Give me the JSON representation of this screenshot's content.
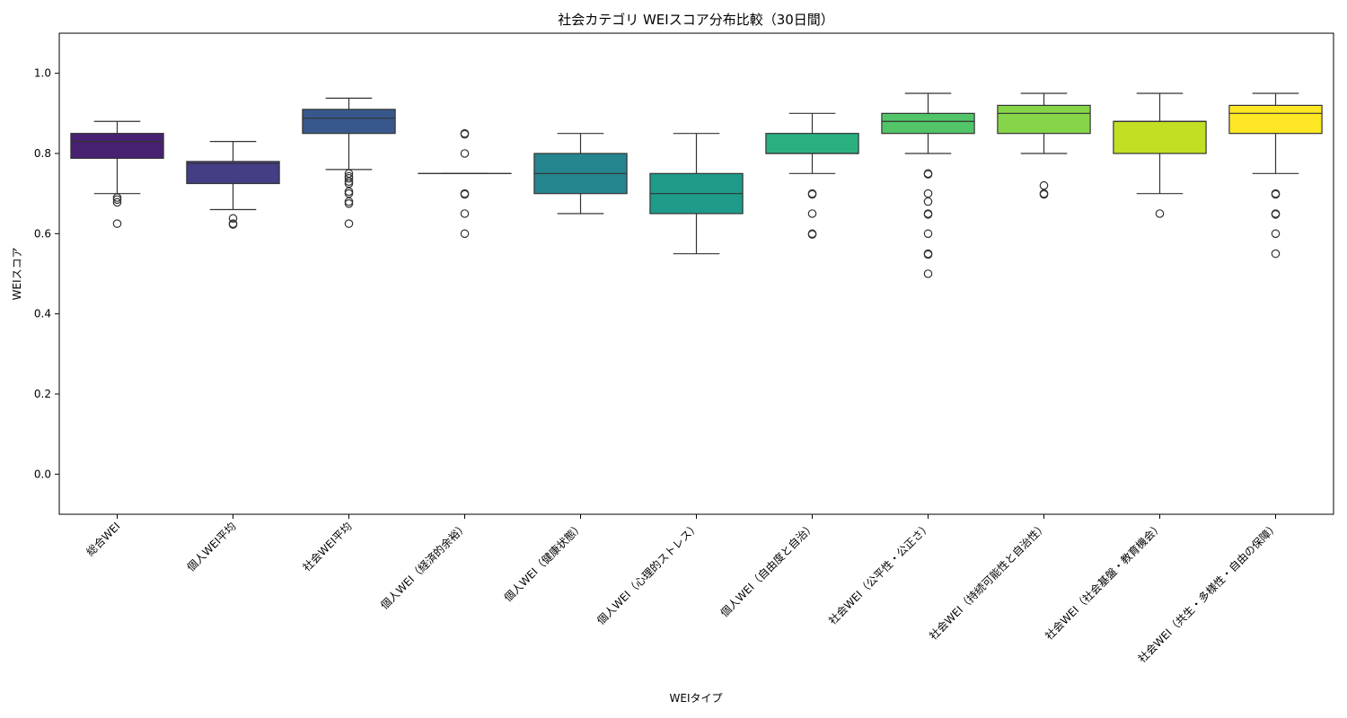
{
  "chart_data": {
    "type": "box",
    "title": "社会カテゴリ WEIスコア分布比較（30日間）",
    "xlabel": "WEIタイプ",
    "ylabel": "WEIスコア",
    "ylim": [
      -0.1,
      1.1
    ],
    "yticks": [
      0.0,
      0.2,
      0.4,
      0.6,
      0.8,
      1.0
    ],
    "ytick_labels": [
      "0.0",
      "0.2",
      "0.4",
      "0.6",
      "0.8",
      "1.0"
    ],
    "grid": false,
    "legend": "none",
    "categories": [
      "総合WEI",
      "個人WEI平均",
      "社会WEI平均",
      "個人WEI（経済的余裕）",
      "個人WEI（健康状態）",
      "個人WEI（心理的ストレス）",
      "個人WEI（自由度と自治）",
      "社会WEI（公平性・公正さ）",
      "社会WEI（持続可能性と自治性）",
      "社会WEI（社会基盤・教育機会）",
      "社会WEI（共生・多様性・自由の保障）"
    ],
    "boxes": [
      {
        "whisker_low": 0.7,
        "q1": 0.788,
        "median": 0.83,
        "q3": 0.85,
        "whisker_high": 0.88,
        "outliers": [
          0.69,
          0.685,
          0.678,
          0.625
        ],
        "color": "#482173"
      },
      {
        "whisker_low": 0.66,
        "q1": 0.725,
        "median": 0.775,
        "q3": 0.78,
        "whisker_high": 0.83,
        "outliers": [
          0.638,
          0.625,
          0.623
        ],
        "color": "#433e85"
      },
      {
        "whisker_low": 0.76,
        "q1": 0.85,
        "median": 0.888,
        "q3": 0.91,
        "whisker_high": 0.938,
        "outliers": [
          0.75,
          0.743,
          0.738,
          0.73,
          0.725,
          0.705,
          0.7,
          0.68,
          0.675,
          0.625
        ],
        "color": "#38588c"
      },
      {
        "whisker_low": 0.75,
        "q1": 0.75,
        "median": 0.75,
        "q3": 0.75,
        "whisker_high": 0.75,
        "outliers": [
          0.85,
          0.848,
          0.8,
          0.7,
          0.698,
          0.65,
          0.6
        ],
        "color": "#2d708e"
      },
      {
        "whisker_low": 0.65,
        "q1": 0.7,
        "median": 0.75,
        "q3": 0.8,
        "whisker_high": 0.85,
        "outliers": [],
        "color": "#25858e"
      },
      {
        "whisker_low": 0.55,
        "q1": 0.65,
        "median": 0.7,
        "q3": 0.75,
        "whisker_high": 0.85,
        "outliers": [],
        "color": "#1e9b8a"
      },
      {
        "whisker_low": 0.75,
        "q1": 0.8,
        "median": 0.8,
        "q3": 0.85,
        "whisker_high": 0.9,
        "outliers": [
          0.7,
          0.698,
          0.65,
          0.6,
          0.598
        ],
        "color": "#2ab07f"
      },
      {
        "whisker_low": 0.8,
        "q1": 0.85,
        "median": 0.88,
        "q3": 0.9,
        "whisker_high": 0.95,
        "outliers": [
          0.75,
          0.748,
          0.7,
          0.68,
          0.65,
          0.648,
          0.6,
          0.55,
          0.548,
          0.5
        ],
        "color": "#52c569"
      },
      {
        "whisker_low": 0.8,
        "q1": 0.85,
        "median": 0.9,
        "q3": 0.92,
        "whisker_high": 0.95,
        "outliers": [
          0.72,
          0.7,
          0.698
        ],
        "color": "#86d549"
      },
      {
        "whisker_low": 0.7,
        "q1": 0.8,
        "median": 0.88,
        "q3": 0.88,
        "whisker_high": 0.95,
        "outliers": [
          0.65
        ],
        "color": "#c2df23"
      },
      {
        "whisker_low": 0.75,
        "q1": 0.85,
        "median": 0.9,
        "q3": 0.92,
        "whisker_high": 0.95,
        "outliers": [
          0.7,
          0.698,
          0.65,
          0.648,
          0.6,
          0.55
        ],
        "color": "#fde725"
      }
    ]
  }
}
